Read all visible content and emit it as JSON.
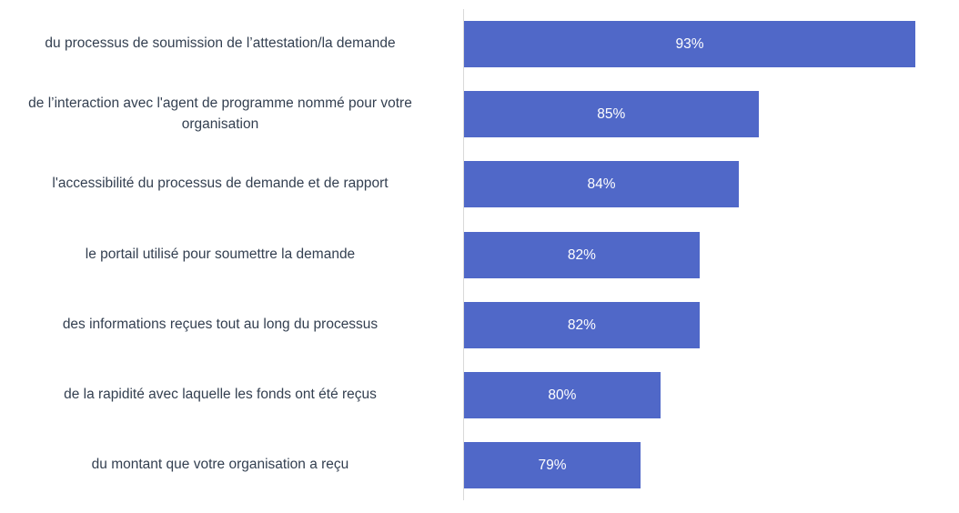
{
  "chart_data": {
    "type": "bar",
    "orientation": "horizontal",
    "title": "",
    "xlabel": "",
    "ylabel": "",
    "xlim": [
      70,
      94.6
    ],
    "grid": false,
    "legend": "none",
    "bar_color": "#5068c8",
    "label_color": "#ffffff",
    "categories": [
      "du processus de soumission de l’attestation/la demande",
      "de l’interaction avec l'agent de programme nommé pour votre organisation",
      "l'accessibilité du processus de demande et de rapport",
      "le portail utilisé pour soumettre la demande",
      "des informations reçues tout au long du processus",
      "de la rapidité avec laquelle les fonds ont été reçus",
      "du montant que votre organisation a reçu"
    ],
    "category_lines": [
      [
        "du processus de soumission de l’attestation/la demande"
      ],
      [
        "de l’interaction avec l'agent de programme nommé pour votre",
        "organisation"
      ],
      [
        "l'accessibilité du processus de demande et de rapport"
      ],
      [
        "le portail utilisé pour soumettre la demande"
      ],
      [
        "des informations reçues tout au long du processus"
      ],
      [
        "de la rapidité avec laquelle les fonds ont été reçus"
      ],
      [
        "du montant que votre organisation a reçu"
      ]
    ],
    "values": [
      93,
      85,
      84,
      82,
      82,
      80,
      79
    ],
    "data_labels": [
      "93%",
      "85%",
      "84%",
      "82%",
      "82%",
      "80%",
      "79%"
    ]
  }
}
